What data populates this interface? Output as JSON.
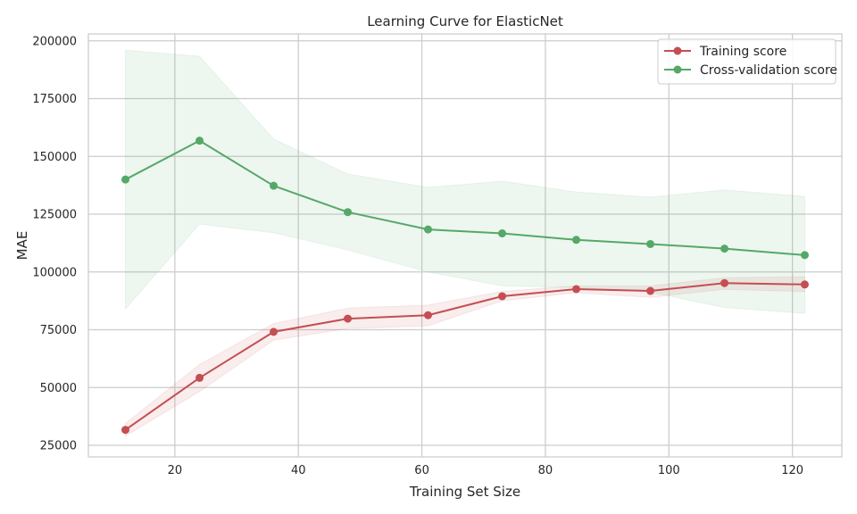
{
  "chart_data": {
    "type": "line",
    "title": "Learning Curve for ElasticNet",
    "xlabel": "Training Set Size",
    "ylabel": "MAE",
    "xlim": [
      6,
      128
    ],
    "ylim": [
      20000,
      203000
    ],
    "xticks": [
      20,
      40,
      60,
      80,
      100,
      120
    ],
    "yticks": [
      25000,
      50000,
      75000,
      100000,
      125000,
      150000,
      175000,
      200000
    ],
    "grid": true,
    "legend_position": "top-right",
    "x": [
      12,
      24,
      36,
      48,
      61,
      73,
      85,
      97,
      109,
      122
    ],
    "series": [
      {
        "name": "Training score",
        "color": "#c44e52",
        "values": [
          31700,
          54200,
          74100,
          79800,
          81300,
          89500,
          92600,
          91800,
          95200,
          94600
        ],
        "upper": [
          34500,
          60000,
          77700,
          84400,
          85700,
          91600,
          94000,
          94000,
          97500,
          98000
        ],
        "lower": [
          29000,
          48300,
          70500,
          75500,
          76700,
          87500,
          91000,
          89000,
          92500,
          91500
        ]
      },
      {
        "name": "Cross-validation score",
        "color": "#55a868",
        "values": [
          140000,
          156800,
          137300,
          125900,
          118400,
          116700,
          113900,
          112100,
          110100,
          107300
        ],
        "upper": [
          196000,
          193300,
          157500,
          142400,
          136600,
          139300,
          134600,
          132400,
          135500,
          132700
        ],
        "lower": [
          84000,
          120700,
          117000,
          109500,
          100000,
          94000,
          93300,
          91300,
          84600,
          82100
        ]
      }
    ]
  }
}
